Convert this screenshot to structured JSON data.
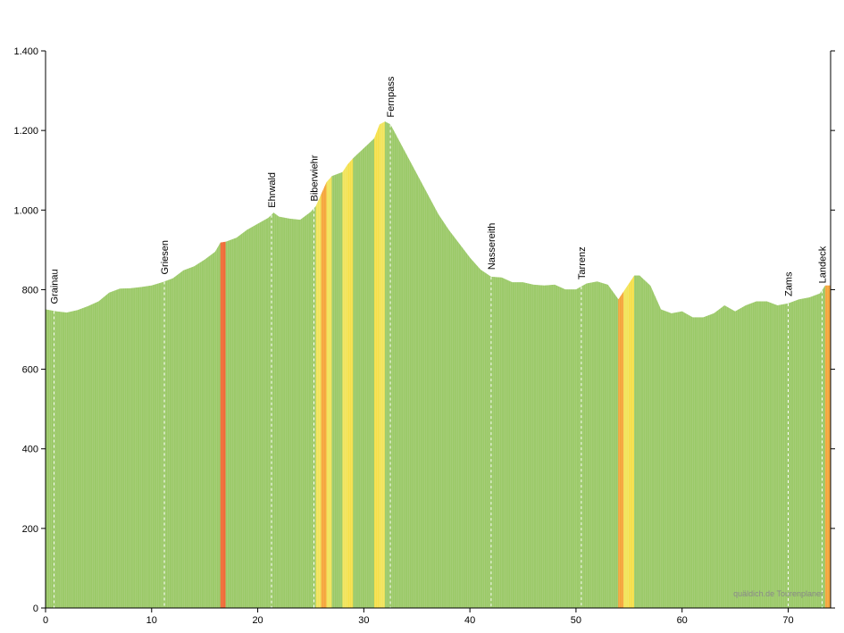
{
  "chart_data": {
    "type": "profile",
    "x": [
      0,
      1,
      2,
      3,
      4,
      5,
      6,
      7,
      8,
      9,
      10,
      11,
      12,
      13,
      14,
      15,
      16,
      16.5,
      17,
      18,
      19,
      20,
      21,
      21.5,
      22,
      23,
      24,
      25,
      25.5,
      26,
      26.5,
      27,
      28,
      28.5,
      29,
      30,
      31,
      31.5,
      32,
      32.5,
      33,
      34,
      35,
      36,
      37,
      38,
      39,
      40,
      41,
      42,
      43,
      44,
      45,
      46,
      47,
      48,
      49,
      50,
      51,
      52,
      53,
      54,
      54.5,
      55,
      55.5,
      56,
      57,
      58,
      59,
      60,
      61,
      62,
      63,
      64,
      65,
      66,
      67,
      68,
      69,
      70,
      71,
      72,
      73,
      73.5
    ],
    "values": [
      750,
      745,
      742,
      748,
      758,
      770,
      792,
      802,
      803,
      806,
      810,
      818,
      828,
      848,
      858,
      875,
      895,
      918,
      920,
      930,
      950,
      965,
      980,
      993,
      983,
      978,
      975,
      995,
      1010,
      1040,
      1070,
      1085,
      1095,
      1115,
      1130,
      1155,
      1180,
      1215,
      1222,
      1215,
      1190,
      1140,
      1090,
      1040,
      990,
      950,
      915,
      880,
      850,
      832,
      830,
      818,
      818,
      812,
      810,
      812,
      800,
      800,
      815,
      820,
      812,
      775,
      795,
      815,
      835,
      835,
      810,
      750,
      740,
      745,
      730,
      730,
      740,
      760,
      745,
      760,
      770,
      770,
      760,
      765,
      775,
      780,
      790,
      810
    ],
    "colors": [
      "#9bc968",
      "#9bc968",
      "#9bc968",
      "#9bc968",
      "#9bc968",
      "#9bc968",
      "#9bc968",
      "#9bc968",
      "#9bc968",
      "#9bc968",
      "#9bc968",
      "#9bc968",
      "#9bc968",
      "#9bc968",
      "#9bc968",
      "#9bc968",
      "#9bc968",
      "#f06a35",
      "#9bc968",
      "#9bc968",
      "#9bc968",
      "#9bc968",
      "#9bc968",
      "#9bc968",
      "#9bc968",
      "#9bc968",
      "#9bc968",
      "#9bc968",
      "#f2e45a",
      "#f5a53a",
      "#f2e45a",
      "#9bc968",
      "#f2e45a",
      "#f5e04a",
      "#9bc968",
      "#9bc968",
      "#f5e04a",
      "#f2e45a",
      "#9bc968",
      "#9bc968",
      "#9bc968",
      "#9bc968",
      "#9bc968",
      "#9bc968",
      "#9bc968",
      "#9bc968",
      "#9bc968",
      "#9bc968",
      "#9bc968",
      "#9bc968",
      "#9bc968",
      "#9bc968",
      "#9bc968",
      "#9bc968",
      "#9bc968",
      "#9bc968",
      "#9bc968",
      "#9bc968",
      "#9bc968",
      "#9bc968",
      "#9bc968",
      "#f5a53a",
      "#f2e45a",
      "#f5e04a",
      "#9bc968",
      "#9bc968",
      "#9bc968",
      "#9bc968",
      "#9bc968",
      "#9bc968",
      "#9bc968",
      "#9bc968",
      "#9bc968",
      "#9bc968",
      "#9bc968",
      "#9bc968",
      "#9bc968",
      "#9bc968",
      "#9bc968",
      "#9bc968",
      "#9bc968",
      "#9bc968",
      "#9bc968",
      "#f5a53a"
    ],
    "xlim": [
      0,
      74
    ],
    "ylim": [
      0,
      1400
    ],
    "xticks": [
      0,
      10,
      20,
      30,
      40,
      50,
      60,
      70
    ],
    "yticks": [
      0,
      200,
      400,
      600,
      800,
      {
        "value": 1000,
        "label": "1.000"
      },
      {
        "value": 1200,
        "label": "1.200"
      },
      {
        "value": 1400,
        "label": "1.400"
      }
    ],
    "places": [
      {
        "name": "Grainau",
        "x": 0.8
      },
      {
        "name": "Griesen",
        "x": 11.2
      },
      {
        "name": "Ehrwald",
        "x": 21.3
      },
      {
        "name": "Biberwiehr",
        "x": 25.3
      },
      {
        "name": "Fernpass",
        "x": 32.5
      },
      {
        "name": "Nassereith",
        "x": 42
      },
      {
        "name": "Tarrenz",
        "x": 50.5
      },
      {
        "name": "Zams",
        "x": 70
      },
      {
        "name": "Landeck",
        "x": 73.2
      }
    ],
    "credit": "quäldich.de Tourenplaner"
  }
}
